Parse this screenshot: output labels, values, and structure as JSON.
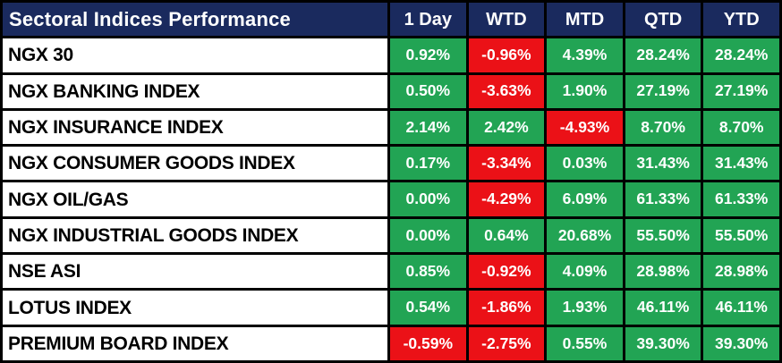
{
  "colors": {
    "header_bg": "#1A2A5E",
    "header_fg": "#FFFFFF",
    "label_bg": "#FFFFFF",
    "label_fg": "#000000",
    "positive_bg": "#22A454",
    "negative_bg": "#EB1117",
    "grid": "#000000",
    "value_fg": "#FFFFFF"
  },
  "chart_data": {
    "type": "table",
    "title": "Sectoral Indices Performance",
    "columns": [
      "1 Day",
      "WTD",
      "MTD",
      "QTD",
      "YTD"
    ],
    "rows": [
      {
        "label": "NGX 30",
        "cells": [
          {
            "text": "0.92%",
            "state": "positive"
          },
          {
            "text": "-0.96%",
            "state": "negative"
          },
          {
            "text": "4.39%",
            "state": "positive"
          },
          {
            "text": "28.24%",
            "state": "positive"
          },
          {
            "text": "28.24%",
            "state": "positive"
          }
        ]
      },
      {
        "label": "NGX BANKING INDEX",
        "cells": [
          {
            "text": "0.50%",
            "state": "positive"
          },
          {
            "text": "-3.63%",
            "state": "negative"
          },
          {
            "text": "1.90%",
            "state": "positive"
          },
          {
            "text": "27.19%",
            "state": "positive"
          },
          {
            "text": "27.19%",
            "state": "positive"
          }
        ]
      },
      {
        "label": "NGX INSURANCE INDEX",
        "cells": [
          {
            "text": "2.14%",
            "state": "positive"
          },
          {
            "text": "2.42%",
            "state": "positive"
          },
          {
            "text": "-4.93%",
            "state": "negative"
          },
          {
            "text": "8.70%",
            "state": "positive"
          },
          {
            "text": "8.70%",
            "state": "positive"
          }
        ]
      },
      {
        "label": "NGX CONSUMER GOODS INDEX",
        "cells": [
          {
            "text": "0.17%",
            "state": "positive"
          },
          {
            "text": "-3.34%",
            "state": "negative"
          },
          {
            "text": "0.03%",
            "state": "positive"
          },
          {
            "text": "31.43%",
            "state": "positive"
          },
          {
            "text": "31.43%",
            "state": "positive"
          }
        ]
      },
      {
        "label": "NGX OIL/GAS",
        "cells": [
          {
            "text": "0.00%",
            "state": "positive"
          },
          {
            "text": "-4.29%",
            "state": "negative"
          },
          {
            "text": "6.09%",
            "state": "positive"
          },
          {
            "text": "61.33%",
            "state": "positive"
          },
          {
            "text": "61.33%",
            "state": "positive"
          }
        ]
      },
      {
        "label": "NGX INDUSTRIAL GOODS INDEX",
        "cells": [
          {
            "text": "0.00%",
            "state": "positive"
          },
          {
            "text": "0.64%",
            "state": "positive"
          },
          {
            "text": "20.68%",
            "state": "positive"
          },
          {
            "text": "55.50%",
            "state": "positive"
          },
          {
            "text": "55.50%",
            "state": "positive"
          }
        ]
      },
      {
        "label": "NSE ASI",
        "cells": [
          {
            "text": "0.85%",
            "state": "positive"
          },
          {
            "text": "-0.92%",
            "state": "negative"
          },
          {
            "text": "4.09%",
            "state": "positive"
          },
          {
            "text": "28.98%",
            "state": "positive"
          },
          {
            "text": "28.98%",
            "state": "positive"
          }
        ]
      },
      {
        "label": "LOTUS INDEX",
        "cells": [
          {
            "text": "0.54%",
            "state": "positive"
          },
          {
            "text": "-1.86%",
            "state": "negative"
          },
          {
            "text": "1.93%",
            "state": "positive"
          },
          {
            "text": "46.11%",
            "state": "positive"
          },
          {
            "text": "46.11%",
            "state": "positive"
          }
        ]
      },
      {
        "label": "PREMIUM BOARD INDEX",
        "cells": [
          {
            "text": "-0.59%",
            "state": "negative"
          },
          {
            "text": "-2.75%",
            "state": "negative"
          },
          {
            "text": "0.55%",
            "state": "positive"
          },
          {
            "text": "39.30%",
            "state": "positive"
          },
          {
            "text": "39.30%",
            "state": "positive"
          }
        ]
      }
    ]
  }
}
